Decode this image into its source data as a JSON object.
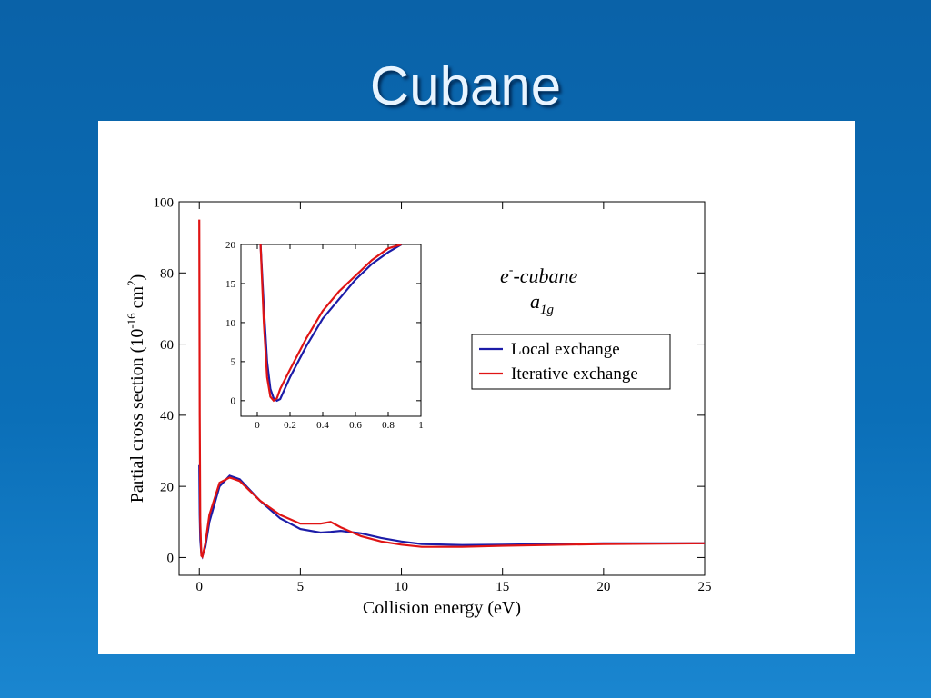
{
  "slide": {
    "title": "Cubane"
  },
  "chart_data": [
    {
      "type": "line",
      "xlabel": "Collision energy (eV)",
      "ylabel": [
        "Partial cross section (10",
        "-16",
        " cm",
        "2",
        ")"
      ],
      "annotations": [
        [
          "e",
          "-",
          "-cubane"
        ],
        [
          "a",
          "1g"
        ]
      ],
      "x": [
        0,
        0.02,
        0.05,
        0.1,
        0.15,
        0.3,
        0.5,
        1,
        1.5,
        2,
        3,
        4,
        5,
        6,
        6.5,
        7,
        8,
        9,
        10,
        11,
        13,
        15,
        20,
        25
      ],
      "series": [
        {
          "name": "Local exchange",
          "color": "#1c1ca8",
          "values": [
            26,
            12,
            5,
            1,
            0.3,
            3,
            10,
            20,
            23,
            22,
            16,
            11,
            8,
            7,
            7.2,
            7.5,
            6.8,
            5.5,
            4.5,
            3.8,
            3.5,
            3.6,
            4,
            4
          ]
        },
        {
          "name": "Iterative exchange",
          "color": "#e01414",
          "values": [
            95,
            40,
            10,
            0.5,
            0.2,
            4,
            12,
            21,
            22.5,
            21.5,
            16,
            12,
            9.5,
            9.5,
            10,
            8.5,
            6,
            4.5,
            3.6,
            3,
            3,
            3.3,
            3.8,
            4
          ]
        }
      ],
      "xlim": [
        -1,
        25
      ],
      "ylim": [
        -5,
        100
      ],
      "xticks": [
        0,
        5,
        10,
        15,
        20,
        25
      ],
      "yticks": [
        0,
        20,
        40,
        60,
        80,
        100
      ],
      "legend": "upper right"
    },
    {
      "type": "line",
      "x": [
        0.02,
        0.04,
        0.06,
        0.08,
        0.1,
        0.12,
        0.14,
        0.2,
        0.3,
        0.4,
        0.5,
        0.6,
        0.7,
        0.8,
        0.88
      ],
      "series": [
        {
          "color": "#1c1ca8",
          "values": [
            20,
            12,
            5,
            1.5,
            0.3,
            0,
            0.2,
            3,
            7,
            10.5,
            13,
            15.5,
            17.5,
            19,
            20
          ]
        },
        {
          "color": "#e01414",
          "values": [
            20,
            10,
            3,
            0.5,
            0,
            0.3,
            1.5,
            4,
            8,
            11.5,
            14,
            16,
            18,
            19.5,
            20
          ]
        }
      ],
      "xlim": [
        -0.1,
        1
      ],
      "ylim": [
        -2,
        20
      ],
      "xticks": [
        0,
        0.2,
        0.4,
        0.6,
        0.8,
        1
      ],
      "yticks": [
        0,
        5,
        10,
        15,
        20
      ]
    }
  ]
}
